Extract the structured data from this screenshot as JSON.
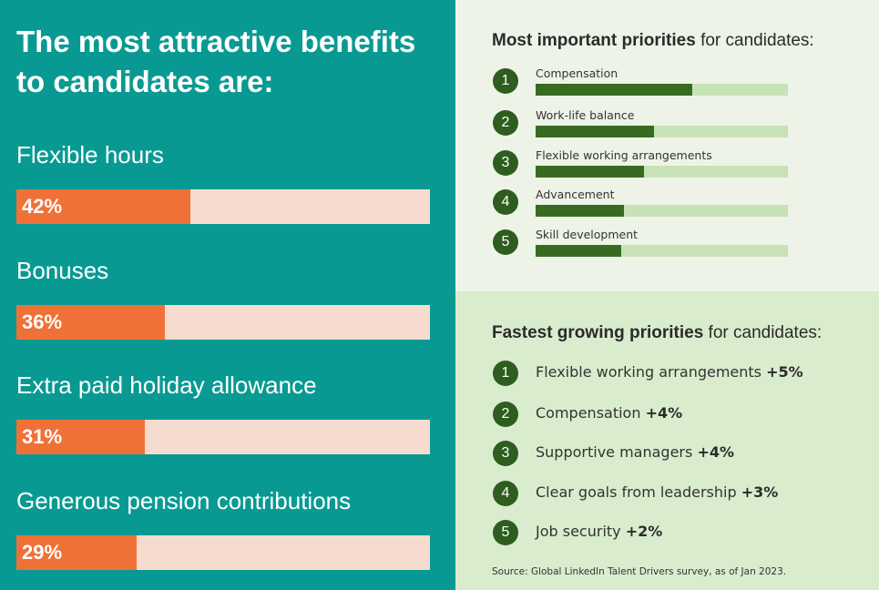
{
  "left_panel": {
    "title": "The most attractive benefits to candidates are:"
  },
  "priorities": {
    "title_bold": "Most important priorities",
    "title_rest": " for candidates:"
  },
  "growing": {
    "title_bold": "Fastest growing priorities",
    "title_rest": " for candidates:",
    "items": [
      {
        "rank": "1",
        "label": "Flexible working arrangements",
        "delta": "+5%"
      },
      {
        "rank": "2",
        "label": "Compensation",
        "delta": "+4%"
      },
      {
        "rank": "3",
        "label": "Supportive managers ",
        "delta": "+4%"
      },
      {
        "rank": "4",
        "label": "Clear goals from leadership",
        "delta": "+3%"
      },
      {
        "rank": "5",
        "label": "Job security",
        "delta": "+2%"
      }
    ]
  },
  "source": "Source: Global LinkedIn Talent Drivers survey, as of Jan 2023.",
  "colors": {
    "teal_background": "#089a92",
    "orange_fill": "#f07137",
    "orange_track": "#f6dccf",
    "green_dark": "#2e5d1f",
    "green_fill": "#386b22",
    "green_track": "#c8e2b8",
    "light_panel": "#eef3e8",
    "green_panel": "#d9eccd"
  },
  "chart_data": [
    {
      "type": "bar",
      "orientation": "horizontal",
      "title": "The most attractive benefits to candidates are:",
      "categories": [
        "Flexible hours",
        "Bonuses",
        "Extra paid holiday allowance",
        "Generous pension contributions"
      ],
      "values": [
        42,
        36,
        31,
        29
      ],
      "value_labels": [
        "42%",
        "36%",
        "31%",
        "29%"
      ],
      "xlim": [
        0,
        100
      ]
    },
    {
      "type": "bar",
      "orientation": "horizontal",
      "title": "Most important priorities for candidates:",
      "categories": [
        "Compensation",
        "Work-life balance",
        "Flexible working arrangements",
        "Advancement",
        "Skill development"
      ],
      "ranks": [
        "1",
        "2",
        "3",
        "4",
        "5"
      ],
      "values": [
        62,
        47,
        43,
        35,
        34
      ],
      "xlim": [
        0,
        100
      ]
    }
  ]
}
